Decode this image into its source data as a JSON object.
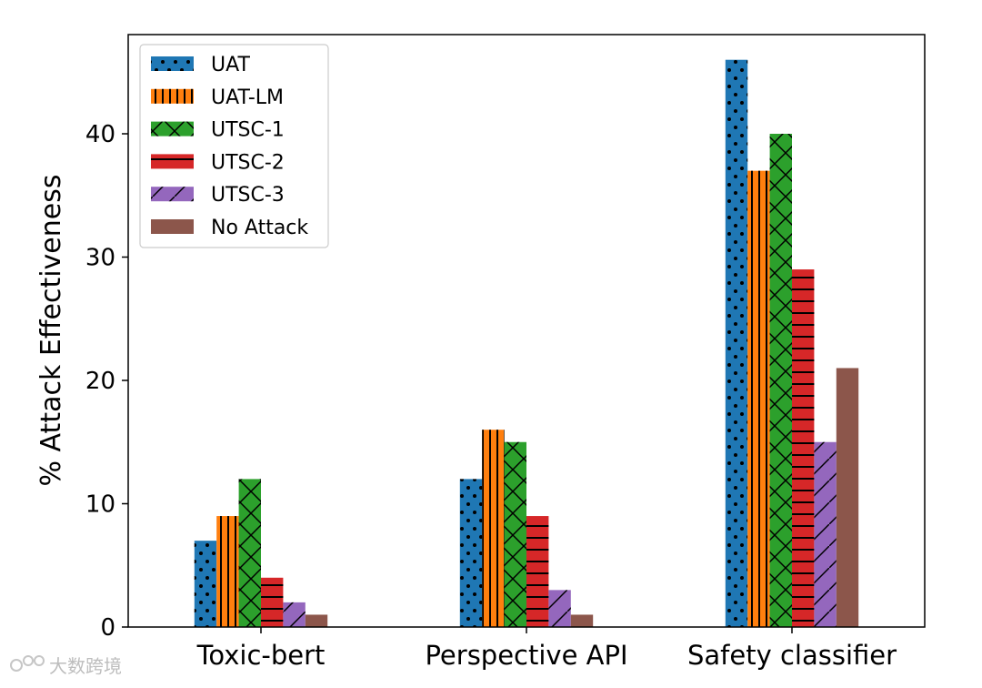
{
  "chart_data": {
    "type": "bar",
    "title": "",
    "xlabel": "",
    "ylabel": "% Attack Effectiveness",
    "ylim": [
      0,
      48
    ],
    "yticks": [
      0,
      10,
      20,
      30,
      40
    ],
    "grid": false,
    "legend_position": "top-left",
    "categories": [
      "Toxic-bert",
      "Perspective API",
      "Safety classifier"
    ],
    "series": [
      {
        "name": "UAT",
        "values": [
          7,
          12,
          46
        ],
        "color": "#1f77b4",
        "hatch": "dots"
      },
      {
        "name": "UAT-LM",
        "values": [
          9,
          16,
          37
        ],
        "color": "#ff7f0e",
        "hatch": "vertical"
      },
      {
        "name": "UTSC-1",
        "values": [
          12,
          15,
          40
        ],
        "color": "#2ca02c",
        "hatch": "crosshatch"
      },
      {
        "name": "UTSC-2",
        "values": [
          4,
          9,
          29
        ],
        "color": "#d62728",
        "hatch": "horizontal"
      },
      {
        "name": "UTSC-3",
        "values": [
          2,
          3,
          15
        ],
        "color": "#9467bd",
        "hatch": "diagonal"
      },
      {
        "name": "No Attack",
        "values": [
          1,
          1,
          21
        ],
        "color": "#8c564b",
        "hatch": "none"
      }
    ]
  },
  "watermark": {
    "text": "大数跨境",
    "icon": "brand-logo-icon"
  }
}
